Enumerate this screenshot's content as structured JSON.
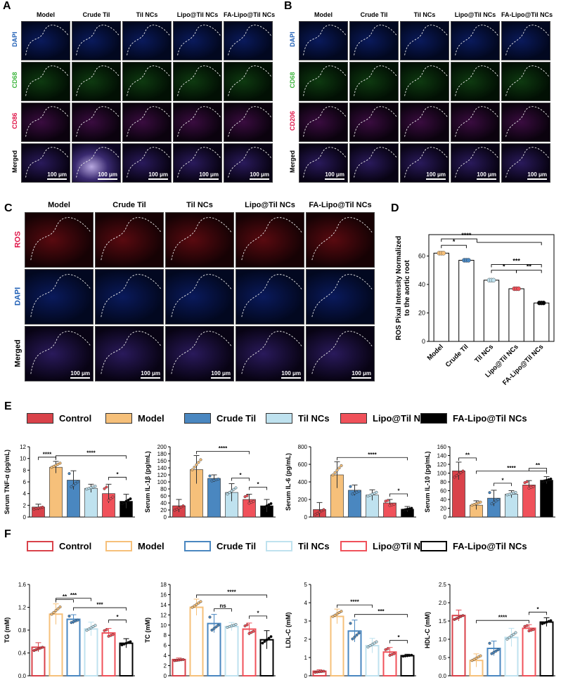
{
  "panels": {
    "a_label": "A",
    "b_label": "B",
    "c_label": "C",
    "d_label": "D",
    "e_label": "E",
    "f_label": "F"
  },
  "groups": [
    "Model",
    "Crude Til",
    "Til NCs",
    "Lipo@Til NCs",
    "FA-Lipo@Til NCs"
  ],
  "panel_a": {
    "rows": [
      "DAPI",
      "CD68",
      "CD86",
      "Merged"
    ],
    "row_colors": [
      "#1f5fb5",
      "#3db53d",
      "#e0174a",
      "#000000"
    ],
    "scalebar": "100 μm"
  },
  "panel_b": {
    "rows": [
      "DAPI",
      "CD68",
      "CD206",
      "Merged"
    ],
    "row_colors": [
      "#1f5fb5",
      "#3db53d",
      "#e0174a",
      "#000000"
    ],
    "scalebar": "100 μm"
  },
  "panel_c": {
    "rows": [
      "ROS",
      "DAPI",
      "Merged"
    ],
    "row_colors": [
      "#e0174a",
      "#1f5fb5",
      "#000000"
    ],
    "scalebar": "100 μm"
  },
  "legend_e": [
    {
      "label": "Control",
      "color": "#d9424a"
    },
    {
      "label": "Model",
      "color": "#f6c07a"
    },
    {
      "label": "Crude Til",
      "color": "#4a87c0"
    },
    {
      "label": "Til NCs",
      "color": "#bfe2ef"
    },
    {
      "label": "Lipo@Til NCs",
      "color": "#f0515a"
    },
    {
      "label": "FA-Lipo@Til NCs",
      "color": "#000000"
    }
  ],
  "legend_f": [
    {
      "label": "Control",
      "color": "#d9424a"
    },
    {
      "label": "Model",
      "color": "#f6c07a"
    },
    {
      "label": "Crude Til",
      "color": "#4a87c0"
    },
    {
      "label": "Til NCs",
      "color": "#bfe2ef"
    },
    {
      "label": "Lipo@Til NCs",
      "color": "#f0515a"
    },
    {
      "label": "FA-Lipo@Til NCs",
      "color": "#000000"
    }
  ],
  "chart_data": [
    {
      "id": "D",
      "type": "bar",
      "ylabel": "ROS Pixal Intensity Normalized\nto the aortic root",
      "categories": [
        "Model",
        "Crude Til",
        "Til NCs",
        "Lipo@Til NCs",
        "FA-Lipo@Til NCs"
      ],
      "values": [
        62,
        57,
        43,
        37,
        27
      ],
      "colors": [
        "#f6c07a",
        "#4a87c0",
        "#bfe2ef",
        "#f0515a",
        "#000000"
      ],
      "ylim": [
        0,
        75
      ],
      "yticks": [
        0,
        20,
        40,
        60
      ],
      "significance": [
        {
          "from": 0,
          "to": 1,
          "label": "*"
        },
        {
          "from": 0,
          "to": 2,
          "label": "****",
          "spanTo": 4
        },
        {
          "from": 2,
          "to": 4,
          "label": "***"
        },
        {
          "from": 2,
          "to": 3,
          "label": "*"
        },
        {
          "from": 3,
          "to": 4,
          "label": "**"
        }
      ]
    },
    {
      "id": "E1",
      "type": "bar",
      "style": "filled",
      "ylabel": "Serum TNF-α (pg/mL)",
      "categories": [
        "Control",
        "Model",
        "Crude Til",
        "Til NCs",
        "Lipo@Til NCs",
        "FA-Lipo@Til NCs"
      ],
      "values": [
        1.7,
        8.5,
        6.3,
        4.9,
        4.0,
        2.7
      ],
      "errors": [
        0.5,
        1.0,
        1.6,
        0.7,
        1.6,
        1.2
      ],
      "ylim": [
        0,
        12
      ],
      "yticks": [
        0,
        2,
        4,
        6,
        8,
        10,
        12
      ],
      "significance": [
        {
          "from": 0,
          "to": 1,
          "label": "****"
        },
        {
          "from": 1,
          "to": 5,
          "label": "****"
        },
        {
          "from": 4,
          "to": 5,
          "label": "*"
        }
      ]
    },
    {
      "id": "E2",
      "type": "bar",
      "style": "filled",
      "ylabel": "Serum IL-1β (pg/mL)",
      "categories": [
        "Control",
        "Model",
        "Crude Til",
        "Til NCs",
        "Lipo@Til NCs",
        "FA-Lipo@Til NCs"
      ],
      "values": [
        32,
        135,
        110,
        70,
        50,
        32
      ],
      "errors": [
        18,
        40,
        10,
        25,
        15,
        18
      ],
      "ylim": [
        0,
        200
      ],
      "yticks": [
        0,
        20,
        40,
        60,
        80,
        100,
        120,
        140,
        160,
        180,
        200
      ],
      "significance": [
        {
          "from": 1,
          "to": 4,
          "label": "****"
        },
        {
          "from": 3,
          "to": 4,
          "label": "*"
        },
        {
          "from": 4,
          "to": 5,
          "label": "*"
        }
      ]
    },
    {
      "id": "E3",
      "type": "bar",
      "style": "filled",
      "ylabel": "Serum IL-6 (pg/mL)",
      "categories": [
        "Control",
        "Model",
        "Crude Til",
        "Til NCs",
        "Lipo@Til NCs",
        "FA-Lipo@Til NCs"
      ],
      "values": [
        85,
        480,
        305,
        250,
        160,
        90
      ],
      "errors": [
        80,
        150,
        60,
        60,
        40,
        30
      ],
      "ylim": [
        0,
        800
      ],
      "yticks": [
        0,
        200,
        400,
        600,
        800
      ],
      "significance": [
        {
          "from": 1,
          "to": 5,
          "label": "****"
        },
        {
          "from": 4,
          "to": 5,
          "label": "*"
        }
      ]
    },
    {
      "id": "E4",
      "type": "bar",
      "style": "filled",
      "ylabel": "Serum IL-10 (pg/mL)",
      "categories": [
        "Control",
        "Model",
        "Crude Til",
        "Til NCs",
        "Lipo@Til NCs",
        "FA-Lipo@Til NCs"
      ],
      "values": [
        105,
        27,
        43,
        52,
        73,
        84
      ],
      "errors": [
        20,
        10,
        18,
        8,
        10,
        8
      ],
      "ylim": [
        0,
        160
      ],
      "yticks": [
        0,
        20,
        40,
        60,
        80,
        100,
        120,
        140,
        160
      ],
      "significance": [
        {
          "from": 0,
          "to": 1,
          "label": "**"
        },
        {
          "from": 1,
          "to": 5,
          "label": "****"
        },
        {
          "from": 2,
          "to": 3,
          "label": "*"
        },
        {
          "from": 4,
          "to": 5,
          "label": "**"
        }
      ]
    },
    {
      "id": "F1",
      "type": "bar",
      "style": "outline",
      "ylabel": "TG (mM)",
      "categories": [
        "Control",
        "Model",
        "Crude Til",
        "Til NCs",
        "Lipo@Til NCs",
        "FA-Lipo@Til NCs"
      ],
      "values": [
        0.5,
        1.08,
        0.99,
        0.82,
        0.75,
        0.57
      ],
      "errors": [
        0.08,
        0.18,
        0.08,
        0.12,
        0.08,
        0.08
      ],
      "ylim": [
        0,
        1.6
      ],
      "yticks": [
        0,
        0.4,
        0.8,
        1.2,
        1.6
      ],
      "significance": [
        {
          "from": 1,
          "to": 2,
          "label": "**"
        },
        {
          "from": 1,
          "to": 3,
          "label": "***"
        },
        {
          "from": 2,
          "to": 5,
          "label": "***"
        },
        {
          "from": 4,
          "to": 5,
          "label": "*"
        }
      ]
    },
    {
      "id": "F2",
      "type": "bar",
      "style": "outline",
      "ylabel": "TC (mM)",
      "categories": [
        "Control",
        "Model",
        "Crude Til",
        "Til NCs",
        "Lipo@Til NCs",
        "FA-Lipo@Til NCs"
      ],
      "values": [
        3.2,
        13.5,
        10.3,
        9.7,
        9.2,
        7.1
      ],
      "errors": [
        0.3,
        1.6,
        1.8,
        0.8,
        1.2,
        1.8
      ],
      "ylim": [
        0,
        18
      ],
      "yticks": [
        0,
        2,
        4,
        6,
        8,
        10,
        12,
        14,
        16,
        18
      ],
      "significance": [
        {
          "from": 1,
          "to": 5,
          "label": "****"
        },
        {
          "from": 2,
          "to": 3,
          "label": "ns"
        },
        {
          "from": 4,
          "to": 5,
          "label": "*"
        }
      ]
    },
    {
      "id": "F3",
      "type": "bar",
      "style": "outline",
      "ylabel": "LDL-C (mM)",
      "categories": [
        "Control",
        "Model",
        "Crude Til",
        "Til NCs",
        "Lipo@Til NCs",
        "FA-Lipo@Til NCs"
      ],
      "values": [
        0.25,
        3.25,
        2.45,
        1.65,
        1.3,
        1.1
      ],
      "errors": [
        0.08,
        0.4,
        0.6,
        0.4,
        0.25,
        0.08
      ],
      "ylim": [
        0,
        5
      ],
      "yticks": [
        0,
        1,
        2,
        3,
        4,
        5
      ],
      "significance": [
        {
          "from": 1,
          "to": 3,
          "label": "****"
        },
        {
          "from": 2,
          "to": 5,
          "label": "***"
        },
        {
          "from": 4,
          "to": 5,
          "label": "*"
        }
      ]
    },
    {
      "id": "F4",
      "type": "bar",
      "style": "outline",
      "ylabel": "HDL-C (mM)",
      "categories": [
        "Control",
        "Model",
        "Crude Til",
        "Til NCs",
        "Lipo@Til NCs",
        "FA-Lipo@Til NCs"
      ],
      "values": [
        1.65,
        0.42,
        0.75,
        1.05,
        1.3,
        1.47
      ],
      "errors": [
        0.15,
        0.18,
        0.2,
        0.25,
        0.1,
        0.12
      ],
      "ylim": [
        0,
        2.5
      ],
      "yticks": [
        0,
        0.5,
        1.0,
        1.5,
        2.0,
        2.5
      ],
      "significance": [
        {
          "from": 1,
          "to": 4,
          "label": "****"
        },
        {
          "from": 4,
          "to": 5,
          "label": "*"
        }
      ]
    }
  ]
}
